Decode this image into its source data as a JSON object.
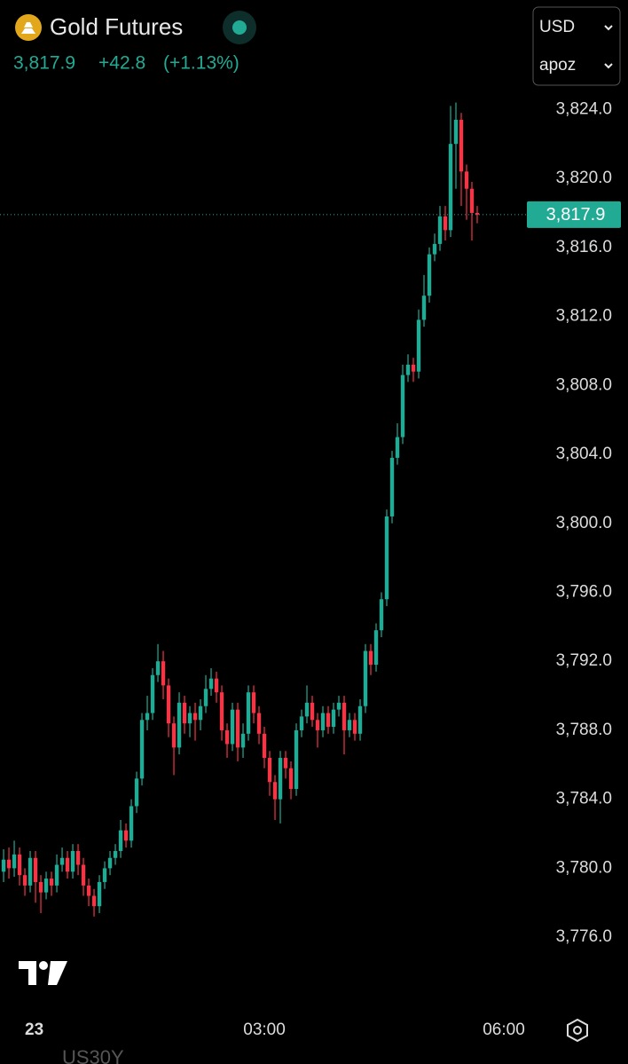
{
  "header": {
    "title": "Gold Futures",
    "price": "3,817.9",
    "change": "+42.8",
    "change_pct": "(+1.13%)"
  },
  "controls": {
    "currency": "USD",
    "unit": "apoz"
  },
  "footer": {
    "next_symbol": "US30Y"
  },
  "chart_data": {
    "type": "candlestick",
    "up_color": "#22ab94",
    "down_color": "#f23645",
    "last_price": {
      "value": 3817.9,
      "label": "3,817.9"
    },
    "xlim": [
      -18.7,
      376
    ],
    "xticks": [
      {
        "value": 0,
        "label": "23"
      },
      {
        "value": 180,
        "label": "03:00"
      },
      {
        "value": 360,
        "label": "06:00"
      }
    ],
    "ylim": [
      3772.2,
      3825.2
    ],
    "yticks": [
      {
        "value": 3776,
        "label": "3,776.0"
      },
      {
        "value": 3780,
        "label": "3,780.0"
      },
      {
        "value": 3784,
        "label": "3,784.0"
      },
      {
        "value": 3788,
        "label": "3,788.0"
      },
      {
        "value": 3792,
        "label": "3,792.0"
      },
      {
        "value": 3796,
        "label": "3,796.0"
      },
      {
        "value": 3800,
        "label": "3,800.0"
      },
      {
        "value": 3804,
        "label": "3,804.0"
      },
      {
        "value": 3808,
        "label": "3,808.0"
      },
      {
        "value": 3812,
        "label": "3,812.0"
      },
      {
        "value": 3816,
        "label": "3,816.0"
      },
      {
        "value": 3820,
        "label": "3,820.0"
      },
      {
        "value": 3824,
        "label": "3,824.0"
      }
    ],
    "x": [
      -16,
      -12,
      -8,
      -4,
      0,
      4,
      8,
      12,
      16,
      20,
      24,
      28,
      32,
      36,
      40,
      44,
      48,
      52,
      56,
      60,
      64,
      68,
      72,
      76,
      80,
      84,
      88,
      92,
      96,
      100,
      104,
      108,
      112,
      116,
      120,
      124,
      128,
      132,
      136,
      140,
      144,
      148,
      152,
      156,
      160,
      164,
      168,
      172,
      176,
      180,
      184,
      188,
      192,
      196,
      200,
      204,
      208,
      212,
      216,
      220,
      224,
      228,
      232,
      236,
      240,
      244,
      248,
      252,
      256,
      260,
      264,
      268,
      272,
      276,
      280,
      284,
      288,
      292,
      296,
      300,
      304,
      308,
      312,
      316,
      320,
      324,
      328,
      332,
      336,
      340
    ],
    "open": [
      3779.8,
      3780.5,
      3780.0,
      3780.8,
      3779.6,
      3779.0,
      3780.6,
      3779.2,
      3778.6,
      3779.4,
      3779.0,
      3780.2,
      3780.6,
      3779.8,
      3781.0,
      3780.2,
      3779.0,
      3778.4,
      3777.8,
      3779.2,
      3780.0,
      3780.6,
      3781.0,
      3782.2,
      3781.6,
      3783.6,
      3785.2,
      3788.6,
      3789.0,
      3791.2,
      3792.0,
      3790.6,
      3788.4,
      3787.0,
      3789.6,
      3788.4,
      3789.0,
      3788.6,
      3789.4,
      3790.4,
      3791.0,
      3790.2,
      3788.0,
      3787.2,
      3789.2,
      3787.0,
      3787.8,
      3790.2,
      3789.0,
      3787.8,
      3786.4,
      3785.0,
      3784.0,
      3786.4,
      3785.8,
      3784.6,
      3788.0,
      3788.8,
      3789.6,
      3788.6,
      3788.0,
      3789.0,
      3788.2,
      3789.2,
      3789.6,
      3788.0,
      3788.6,
      3787.8,
      3789.4,
      3792.6,
      3791.8,
      3793.8,
      3795.6,
      3800.4,
      3803.8,
      3805.0,
      3808.6,
      3809.2,
      3808.8,
      3811.8,
      3813.2,
      3815.6,
      3816.2,
      3817.8,
      3817.0,
      3822.0,
      3823.4,
      3820.4,
      3819.4,
      3818.0
    ],
    "high": [
      3781.1,
      3781.2,
      3781.6,
      3781.2,
      3780.0,
      3781.0,
      3781.0,
      3779.6,
      3779.8,
      3779.8,
      3780.8,
      3781.2,
      3781.0,
      3781.4,
      3781.4,
      3780.6,
      3779.4,
      3778.8,
      3779.6,
      3780.4,
      3781.0,
      3781.4,
      3782.8,
      3782.6,
      3784.0,
      3785.6,
      3789.0,
      3790.0,
      3791.6,
      3793.0,
      3792.6,
      3791.0,
      3788.8,
      3790.2,
      3790.0,
      3789.4,
      3789.6,
      3789.8,
      3791.2,
      3791.6,
      3791.4,
      3790.6,
      3788.4,
      3789.6,
      3789.6,
      3788.4,
      3790.6,
      3790.6,
      3789.4,
      3788.2,
      3786.8,
      3785.4,
      3786.8,
      3786.8,
      3786.2,
      3788.4,
      3789.2,
      3790.6,
      3790.0,
      3789.0,
      3789.4,
      3789.4,
      3789.6,
      3790.0,
      3790.0,
      3789.0,
      3789.0,
      3789.8,
      3793.0,
      3793.0,
      3794.2,
      3796.0,
      3800.8,
      3804.2,
      3805.8,
      3809.2,
      3809.8,
      3809.6,
      3812.4,
      3814.4,
      3816.0,
      3816.8,
      3818.4,
      3818.4,
      3824.2,
      3824.4,
      3823.8,
      3820.8,
      3819.8,
      3818.4
    ],
    "low": [
      3779.2,
      3779.4,
      3779.5,
      3779.0,
      3778.4,
      3778.6,
      3778.0,
      3777.4,
      3778.2,
      3778.4,
      3778.6,
      3779.8,
      3779.4,
      3779.4,
      3779.6,
      3778.4,
      3777.8,
      3777.2,
      3777.4,
      3778.8,
      3779.6,
      3780.2,
      3780.6,
      3781.2,
      3781.2,
      3783.2,
      3784.8,
      3788.0,
      3788.6,
      3790.8,
      3789.8,
      3787.6,
      3785.4,
      3786.6,
      3787.8,
      3787.6,
      3787.4,
      3788.0,
      3789.0,
      3790.0,
      3789.6,
      3787.4,
      3786.4,
      3786.8,
      3786.2,
      3786.4,
      3787.4,
      3788.4,
      3787.2,
      3785.8,
      3784.2,
      3782.8,
      3782.6,
      3785.2,
      3784.0,
      3784.2,
      3787.6,
      3788.4,
      3788.2,
      3787.0,
      3787.6,
      3787.8,
      3787.8,
      3788.8,
      3786.6,
      3787.6,
      3787.4,
      3787.4,
      3789.0,
      3791.2,
      3791.4,
      3793.4,
      3795.2,
      3800.0,
      3803.4,
      3804.6,
      3808.2,
      3808.2,
      3808.4,
      3811.4,
      3812.8,
      3815.2,
      3815.8,
      3816.4,
      3816.6,
      3819.4,
      3818.4,
      3817.6,
      3816.4,
      3817.4
    ],
    "close": [
      3780.5,
      3780.0,
      3780.8,
      3779.6,
      3779.0,
      3780.6,
      3779.2,
      3778.6,
      3779.4,
      3779.0,
      3780.2,
      3780.6,
      3779.8,
      3781.0,
      3780.2,
      3779.0,
      3778.4,
      3777.8,
      3779.2,
      3780.0,
      3780.6,
      3781.0,
      3782.2,
      3781.6,
      3783.6,
      3785.2,
      3788.6,
      3789.0,
      3791.2,
      3792.0,
      3790.6,
      3788.4,
      3787.0,
      3789.6,
      3788.4,
      3789.0,
      3788.6,
      3789.4,
      3790.4,
      3791.0,
      3790.2,
      3788.0,
      3787.2,
      3789.2,
      3787.0,
      3787.8,
      3790.2,
      3789.0,
      3787.8,
      3786.4,
      3785.0,
      3784.0,
      3786.4,
      3785.8,
      3784.6,
      3788.0,
      3788.8,
      3789.6,
      3788.6,
      3788.0,
      3789.0,
      3788.2,
      3789.2,
      3789.6,
      3788.0,
      3788.6,
      3787.8,
      3789.4,
      3792.6,
      3791.8,
      3793.8,
      3795.6,
      3800.4,
      3803.8,
      3805.0,
      3808.6,
      3809.2,
      3808.8,
      3811.8,
      3813.2,
      3815.6,
      3816.2,
      3817.8,
      3817.0,
      3822.0,
      3823.4,
      3820.4,
      3819.4,
      3818.0,
      3817.9
    ]
  }
}
